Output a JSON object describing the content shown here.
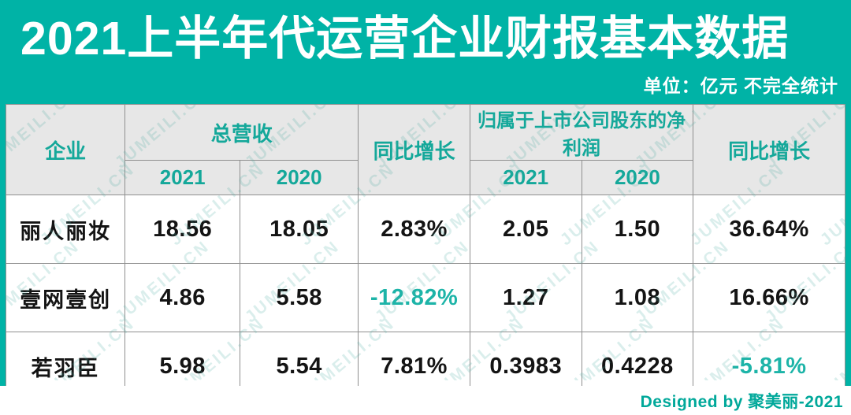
{
  "banner": {
    "title": "2021上半年代运营企业财报基本数据",
    "unit_note": "单位：亿元 不完全统计"
  },
  "watermark": {
    "text": "JUMEILI.CN"
  },
  "table": {
    "header": {
      "company": "企业",
      "revenue_group": "总营收",
      "yoy_revenue": "同比增长",
      "profit_group": "归属于上市公司股东的净利润",
      "yoy_profit": "同比增长",
      "year_2021": "2021",
      "year_2020": "2020"
    },
    "rows": [
      {
        "company": "丽人丽妆",
        "rev_2021": "18.56",
        "rev_2020": "18.05",
        "rev_yoy": "2.83%",
        "profit_2021": "2.05",
        "profit_2020": "1.50",
        "profit_yoy": "36.64%"
      },
      {
        "company": "壹网壹创",
        "rev_2021": "4.86",
        "rev_2020": "5.58",
        "rev_yoy": "-12.82%",
        "profit_2021": "1.27",
        "profit_2020": "1.08",
        "profit_yoy": "16.66%"
      },
      {
        "company": "若羽臣",
        "rev_2021": "5.98",
        "rev_2020": "5.54",
        "rev_yoy": "7.81%",
        "profit_2021": "0.3983",
        "profit_2020": "0.4228",
        "profit_yoy": "-5.81%"
      }
    ]
  },
  "footer": {
    "credit": "Designed by 聚美丽-2021"
  },
  "colors": {
    "accent": "#00b3a6",
    "header_text": "#14a89a",
    "negative": "#1db4a8",
    "gridline": "#8f8f8f",
    "header_bg": "#e7e7e7",
    "credit": "#00a89a"
  },
  "chart_data": {
    "type": "table",
    "title": "2021上半年代运营企业财报基本数据",
    "subtitle": "单位：亿元 不完全统计",
    "column_groups": [
      "企业",
      "总营收",
      "同比增长",
      "归属于上市公司股东的净利润",
      "同比增长"
    ],
    "columns": [
      "企业",
      "总营收 2021",
      "总营收 2020",
      "总营收同比增长",
      "净利润 2021",
      "净利润 2020",
      "净利润同比增长"
    ],
    "rows": [
      [
        "丽人丽妆",
        18.56,
        18.05,
        "2.83%",
        2.05,
        1.5,
        "36.64%"
      ],
      [
        "壹网壹创",
        4.86,
        5.58,
        "-12.82%",
        1.27,
        1.08,
        "16.66%"
      ],
      [
        "若羽臣",
        5.98,
        5.54,
        "7.81%",
        0.3983,
        0.4228,
        "-5.81%"
      ]
    ],
    "unit": "亿元",
    "credit": "Designed by 聚美丽-2021"
  }
}
